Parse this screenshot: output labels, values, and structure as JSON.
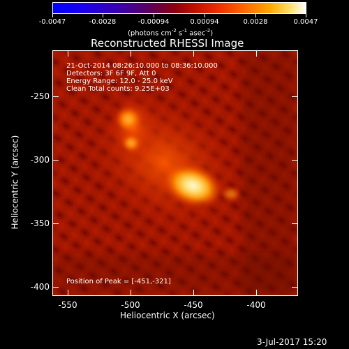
{
  "colorbar": {
    "tick_labels": [
      "-0.0047",
      "-0.0028",
      "-0.00094",
      "0.00094",
      "0.0028",
      "0.0047"
    ],
    "units_text": "(photons cm",
    "units_exp1": "-2",
    "units_mid": " s",
    "units_exp2": "-1",
    "units_mid2": " asec",
    "units_exp3": "-2",
    "units_end": ")"
  },
  "title": "Reconstructed RHESSI Image",
  "annotations": {
    "time_range": "21-Oct-2014 08:26:10.000 to 08:36:10.000",
    "detectors": "Detectors: 3F 6F 9F, Att 0",
    "energy_range": "Energy Range: 12.0 - 25.0 keV",
    "clean_counts": "Clean     Total counts: 9.25E+03",
    "peak_position": "Position of Peak = [-451,-321]"
  },
  "axes": {
    "x_label": "Heliocentric X (arcsec)",
    "y_label": "Heliocentric Y (arcsec)",
    "x_ticks": [
      "-550",
      "-500",
      "-450",
      "-400"
    ],
    "y_ticks": [
      "-250",
      "-300",
      "-350",
      "-400"
    ]
  },
  "timestamp": "3-Jul-2017 15:20",
  "colors": {
    "background": "#000000",
    "foreground": "#ffffff"
  }
}
